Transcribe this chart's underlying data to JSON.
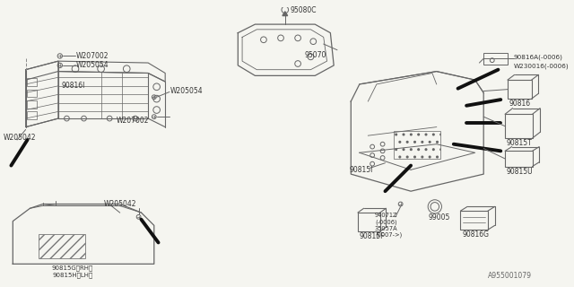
{
  "bg_color": "#f5f5f0",
  "line_color": "#666666",
  "dark_color": "#222222",
  "footer": "A955001079",
  "labels": {
    "W207002_top": "W207002",
    "W205054_top": "W205054",
    "90816I": "90816I",
    "W205054_mid": "W205054",
    "W207002_bot": "W207002",
    "W205042_left": "W205042",
    "W205042_right": "W205042",
    "90815G": "90815G〈RH〉",
    "90815H": "90815H〈LH〉",
    "95080C": "95080C",
    "95070": "95070",
    "90816A": "90816A(-0006)",
    "W230016": "W230016(-0006)",
    "90816": "90816",
    "90815T": "90815T",
    "90815U": "90815U",
    "90815I": "90815I",
    "94071Z": "94071Z\n(-0006)\n35057A\n(0007->)",
    "90815F": "90815F",
    "99005": "99005",
    "90816G": "90816G"
  }
}
